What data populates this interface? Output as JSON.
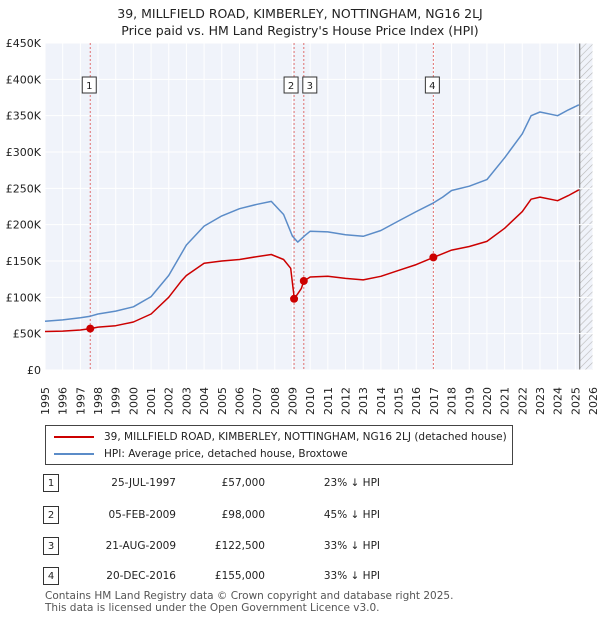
{
  "header": {
    "title": "39, MILLFIELD ROAD, KIMBERLEY, NOTTINGHAM, NG16 2LJ",
    "subtitle": "Price paid vs. HM Land Registry's House Price Index (HPI)"
  },
  "colors": {
    "property": "#cc0000",
    "hpi": "#5b8cc8",
    "marker": "#e07070"
  },
  "chart_data": {
    "type": "line",
    "title": "39, MILLFIELD ROAD, KIMBERLEY, NOTTINGHAM, NG16 2LJ",
    "subtitle": "Price paid vs. HM Land Registry's House Price Index (HPI)",
    "xlim": [
      1995,
      2026
    ],
    "ylim": [
      0,
      450000
    ],
    "y_ticks": [
      {
        "value": 0,
        "label": "£0"
      },
      {
        "value": 50000,
        "label": "£50K"
      },
      {
        "value": 100000,
        "label": "£100K"
      },
      {
        "value": 150000,
        "label": "£150K"
      },
      {
        "value": 200000,
        "label": "£200K"
      },
      {
        "value": 250000,
        "label": "£250K"
      },
      {
        "value": 300000,
        "label": "£300K"
      },
      {
        "value": 350000,
        "label": "£350K"
      },
      {
        "value": 400000,
        "label": "£400K"
      },
      {
        "value": 450000,
        "label": "£450K"
      }
    ],
    "x_ticks": [
      "1995",
      "1996",
      "1997",
      "1998",
      "1999",
      "2000",
      "2001",
      "2002",
      "2003",
      "2004",
      "2005",
      "2006",
      "2007",
      "2008",
      "2009",
      "2010",
      "2011",
      "2012",
      "2013",
      "2014",
      "2015",
      "2016",
      "2017",
      "2018",
      "2019",
      "2020",
      "2021",
      "2022",
      "2023",
      "2024",
      "2025",
      "2026"
    ],
    "grid": true,
    "series": [
      {
        "name": "39, MILLFIELD ROAD, KIMBERLEY, NOTTINGHAM, NG16 2LJ (detached house)",
        "points": [
          [
            1995.0,
            53000
          ],
          [
            1996.0,
            53500
          ],
          [
            1997.0,
            55000
          ],
          [
            1997.56,
            57000
          ],
          [
            1998.0,
            59000
          ],
          [
            1999.0,
            61000
          ],
          [
            2000.0,
            66000
          ],
          [
            2001.0,
            77000
          ],
          [
            2002.0,
            100000
          ],
          [
            2002.7,
            122000
          ],
          [
            2003.0,
            130000
          ],
          [
            2004.0,
            147000
          ],
          [
            2005.0,
            150000
          ],
          [
            2006.0,
            152000
          ],
          [
            2007.0,
            156000
          ],
          [
            2007.8,
            159000
          ],
          [
            2008.5,
            152000
          ],
          [
            2008.9,
            140000
          ],
          [
            2009.1,
            98000
          ],
          [
            2009.5,
            112000
          ],
          [
            2009.64,
            122500
          ],
          [
            2010.0,
            128000
          ],
          [
            2011.0,
            129000
          ],
          [
            2012.0,
            126000
          ],
          [
            2013.0,
            124000
          ],
          [
            2014.0,
            129000
          ],
          [
            2015.0,
            137000
          ],
          [
            2016.0,
            145000
          ],
          [
            2016.97,
            155000
          ],
          [
            2017.5,
            160000
          ],
          [
            2018.0,
            165000
          ],
          [
            2019.0,
            170000
          ],
          [
            2020.0,
            177000
          ],
          [
            2021.0,
            195000
          ],
          [
            2022.0,
            218000
          ],
          [
            2022.5,
            235000
          ],
          [
            2023.0,
            238000
          ],
          [
            2024.0,
            233000
          ],
          [
            2024.6,
            240000
          ],
          [
            2025.2,
            248000
          ]
        ]
      },
      {
        "name": "HPI: Average price, detached house, Broxtowe",
        "points": [
          [
            1995.0,
            67000
          ],
          [
            1996.0,
            69000
          ],
          [
            1997.0,
            72000
          ],
          [
            1997.56,
            74000
          ],
          [
            1998.0,
            77000
          ],
          [
            1999.0,
            81000
          ],
          [
            2000.0,
            87000
          ],
          [
            2001.0,
            101000
          ],
          [
            2002.0,
            130000
          ],
          [
            2003.0,
            172000
          ],
          [
            2004.0,
            198000
          ],
          [
            2005.0,
            212000
          ],
          [
            2006.0,
            222000
          ],
          [
            2007.0,
            228000
          ],
          [
            2007.8,
            232000
          ],
          [
            2008.5,
            214000
          ],
          [
            2009.0,
            184000
          ],
          [
            2009.3,
            176000
          ],
          [
            2009.7,
            185000
          ],
          [
            2010.0,
            191000
          ],
          [
            2011.0,
            190000
          ],
          [
            2012.0,
            186000
          ],
          [
            2013.0,
            184000
          ],
          [
            2014.0,
            192000
          ],
          [
            2015.0,
            205000
          ],
          [
            2016.0,
            218000
          ],
          [
            2016.97,
            230000
          ],
          [
            2017.5,
            238000
          ],
          [
            2018.0,
            247000
          ],
          [
            2019.0,
            253000
          ],
          [
            2020.0,
            262000
          ],
          [
            2021.0,
            292000
          ],
          [
            2022.0,
            325000
          ],
          [
            2022.5,
            350000
          ],
          [
            2023.0,
            355000
          ],
          [
            2024.0,
            350000
          ],
          [
            2024.6,
            358000
          ],
          [
            2025.2,
            365000
          ]
        ]
      }
    ],
    "sales": [
      {
        "label": "1",
        "x": 1997.56,
        "y": 57000
      },
      {
        "label": "2",
        "x": 2009.09,
        "y": 98000
      },
      {
        "label": "3",
        "x": 2009.64,
        "y": 122500
      },
      {
        "label": "4",
        "x": 2016.97,
        "y": 155000
      }
    ],
    "forecast_start": 2025.25
  },
  "legend": {
    "property": "39, MILLFIELD ROAD, KIMBERLEY, NOTTINGHAM, NG16 2LJ (detached house)",
    "hpi": "HPI: Average price, detached house, Broxtowe"
  },
  "sales_table": [
    {
      "num": "1",
      "date": "25-JUL-1997",
      "price": "£57,000",
      "hpi": "23% ↓ HPI"
    },
    {
      "num": "2",
      "date": "05-FEB-2009",
      "price": "£98,000",
      "hpi": "45% ↓ HPI"
    },
    {
      "num": "3",
      "date": "21-AUG-2009",
      "price": "£122,500",
      "hpi": "33% ↓ HPI"
    },
    {
      "num": "4",
      "date": "20-DEC-2016",
      "price": "£155,000",
      "hpi": "33% ↓ HPI"
    }
  ],
  "footer": {
    "line1": "Contains HM Land Registry data © Crown copyright and database right 2025.",
    "line2": "This data is licensed under the Open Government Licence v3.0."
  }
}
